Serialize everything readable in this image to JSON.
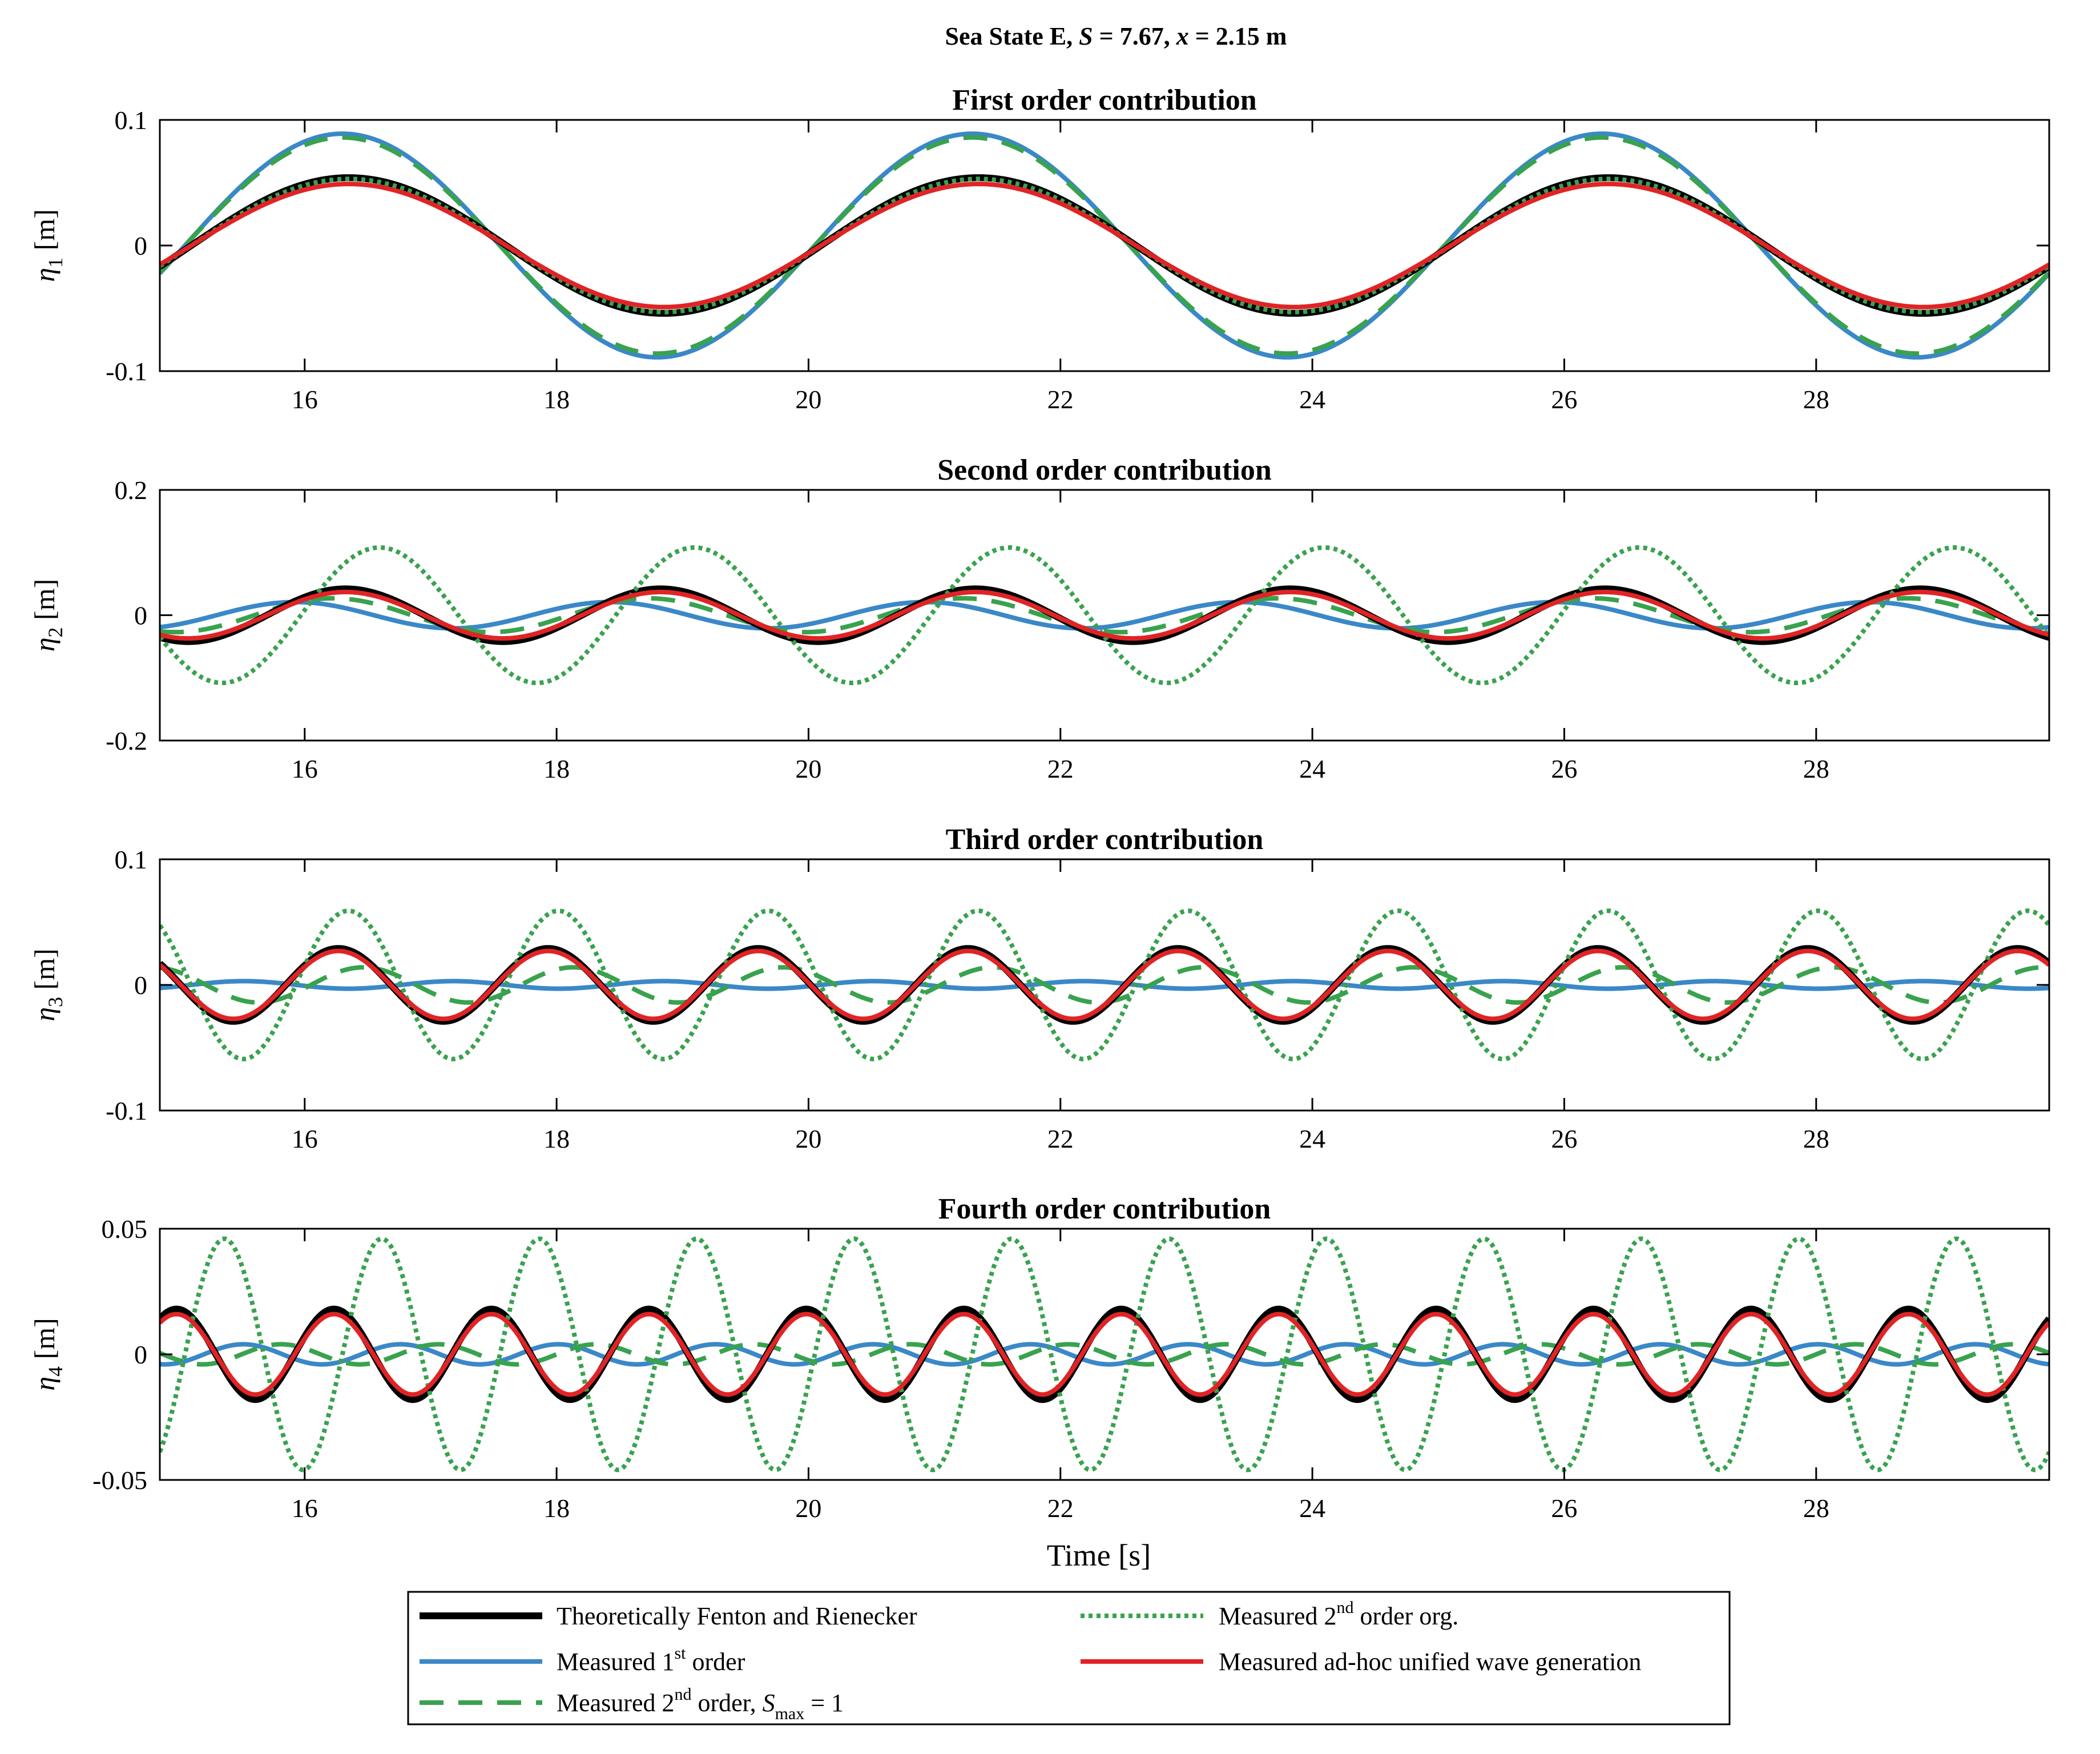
{
  "figure_title": {
    "prefix": "Sea State E, ",
    "S_symbol": "S",
    "S_text": " = 7.67, ",
    "x_symbol": "x",
    "x_text": " = 2.15 m"
  },
  "legend": {
    "entries": [
      {
        "key": "fenton",
        "pre": "Theoretically Fenton and Rienecker",
        "sup": "",
        "post": "",
        "sub_symbol": "",
        "sub": "",
        "tail": ""
      },
      {
        "key": "m1",
        "pre": "Measured 1",
        "sup": "st",
        "post": " order",
        "sub_symbol": "",
        "sub": "",
        "tail": ""
      },
      {
        "key": "m2",
        "pre": "Measured 2",
        "sup": "nd",
        "post": " order, ",
        "sub_symbol": "S",
        "sub": "max",
        "tail": " = 1"
      },
      {
        "key": "m2org",
        "pre": "Measured 2",
        "sup": "nd",
        "post": " order org.",
        "sub_symbol": "",
        "sub": "",
        "tail": ""
      },
      {
        "key": "adhoc",
        "pre": "Measured ad-hoc unified wave generation",
        "sup": "",
        "post": "",
        "sub_symbol": "",
        "sub": "",
        "tail": ""
      }
    ]
  },
  "chart_data": [
    {
      "type": "line",
      "title": "First order contribution",
      "ylabel_symbol": "η",
      "ylabel_sub": "1",
      "ylabel_unit": " [m]",
      "xlabel": "",
      "xlim": [
        14.85,
        29.85
      ],
      "ylim": [
        -0.1,
        0.1
      ],
      "yticks": [
        -0.1,
        0,
        0.1
      ],
      "ytick_labels": [
        "-0.1",
        "0",
        "0.1"
      ],
      "xticks": [
        16,
        18,
        20,
        22,
        24,
        26,
        28
      ],
      "xtick_labels": [
        "16",
        "18",
        "20",
        "22",
        "24",
        "26",
        "28"
      ],
      "period_s": 5.0,
      "series": [
        {
          "name": "Theoretically Fenton and Rienecker",
          "key": "fenton",
          "amplitude": 0.054,
          "zero_crossing_s": 15.1
        },
        {
          "name": "Measured 1st order",
          "key": "m1",
          "amplitude": 0.089,
          "zero_crossing_s": 15.05
        },
        {
          "name": "Measured 2nd order, S_max = 1",
          "key": "m2",
          "amplitude": 0.086,
          "zero_crossing_s": 15.05
        },
        {
          "name": "Measured 2nd order org.",
          "key": "m2org",
          "amplitude": 0.053,
          "zero_crossing_s": 15.1
        },
        {
          "name": "Measured ad-hoc unified wave generation",
          "key": "adhoc",
          "amplitude": 0.049,
          "zero_crossing_s": 15.1
        }
      ]
    },
    {
      "type": "line",
      "title": "Second order contribution",
      "ylabel_symbol": "η",
      "ylabel_sub": "2",
      "ylabel_unit": " [m]",
      "xlabel": "",
      "xlim": [
        14.85,
        29.85
      ],
      "ylim": [
        -0.2,
        0.2
      ],
      "yticks": [
        -0.2,
        0,
        0.2
      ],
      "ytick_labels": [
        "-0.2",
        "0",
        "0.2"
      ],
      "xticks": [
        16,
        18,
        20,
        22,
        24,
        26,
        28
      ],
      "xtick_labels": [
        "16",
        "18",
        "20",
        "22",
        "24",
        "26",
        "28"
      ],
      "period_s": 2.5,
      "series": [
        {
          "name": "Theoretically Fenton and Rienecker",
          "key": "fenton",
          "amplitude": 0.042,
          "zero_crossing_s": 15.7
        },
        {
          "name": "Measured 1st order",
          "key": "m1",
          "amplitude": 0.021,
          "zero_crossing_s": 15.3
        },
        {
          "name": "Measured 2nd order, S_max = 1",
          "key": "m2",
          "amplitude": 0.027,
          "zero_crossing_s": 15.6
        },
        {
          "name": "Measured 2nd order org.",
          "key": "m2org",
          "amplitude": 0.108,
          "zero_crossing_s": 15.97
        },
        {
          "name": "Measured ad-hoc unified wave generation",
          "key": "adhoc",
          "amplitude": 0.037,
          "zero_crossing_s": 15.7
        }
      ]
    },
    {
      "type": "line",
      "title": "Third order contribution",
      "ylabel_symbol": "η",
      "ylabel_sub": "3",
      "ylabel_unit": " [m]",
      "xlabel": "",
      "xlim": [
        14.85,
        29.85
      ],
      "ylim": [
        -0.1,
        0.1
      ],
      "yticks": [
        -0.1,
        0,
        0.1
      ],
      "ytick_labels": [
        "-0.1",
        "0",
        "0.1"
      ],
      "xticks": [
        16,
        18,
        20,
        22,
        24,
        26,
        28
      ],
      "xtick_labels": [
        "16",
        "18",
        "20",
        "22",
        "24",
        "26",
        "28"
      ],
      "period_s": 1.6667,
      "series": [
        {
          "name": "Theoretically Fenton and Rienecker",
          "key": "fenton",
          "amplitude": 0.029,
          "zero_crossing_s": 15.85
        },
        {
          "name": "Measured 1st order",
          "key": "m1",
          "amplitude": 0.003,
          "zero_crossing_s": 15.1
        },
        {
          "name": "Measured 2nd order, S_max = 1",
          "key": "m2",
          "amplitude": 0.014,
          "zero_crossing_s": 16.05
        },
        {
          "name": "Measured 2nd order org.",
          "key": "m2org",
          "amplitude": 0.059,
          "zero_crossing_s": 15.93
        },
        {
          "name": "Measured ad-hoc unified wave generation",
          "key": "adhoc",
          "amplitude": 0.027,
          "zero_crossing_s": 15.85
        }
      ]
    },
    {
      "type": "line",
      "title": "Fourth order contribution",
      "ylabel_symbol": "η",
      "ylabel_sub": "4",
      "ylabel_unit": " [m]",
      "xlabel": "Time [s]",
      "xlim": [
        14.85,
        29.85
      ],
      "ylim": [
        -0.05,
        0.05
      ],
      "yticks": [
        -0.05,
        0,
        0.05
      ],
      "ytick_labels": [
        "-0.05",
        "0",
        "0.05"
      ],
      "xticks": [
        16,
        18,
        20,
        22,
        24,
        26,
        28
      ],
      "xtick_labels": [
        "16",
        "18",
        "20",
        "22",
        "24",
        "26",
        "28"
      ],
      "period_s": 1.25,
      "series": [
        {
          "name": "Theoretically Fenton and Rienecker",
          "key": "fenton",
          "amplitude": 0.018,
          "zero_crossing_s": 15.92
        },
        {
          "name": "Measured 1st order",
          "key": "m1",
          "amplitude": 0.004,
          "zero_crossing_s": 15.2
        },
        {
          "name": "Measured 2nd order, S_max = 1",
          "key": "m2",
          "amplitude": 0.004,
          "zero_crossing_s": 15.5
        },
        {
          "name": "Measured 2nd order org.",
          "key": "m2org",
          "amplitude": 0.046,
          "zero_crossing_s": 16.3
        },
        {
          "name": "Measured ad-hoc unified wave generation",
          "key": "adhoc",
          "amplitude": 0.016,
          "zero_crossing_s": 15.92
        }
      ]
    }
  ],
  "series_styles": {
    "fenton": {
      "color": "#000000",
      "dash": "solid"
    },
    "m1": {
      "color": "#3a88c8",
      "dash": "solid"
    },
    "m2": {
      "color": "#39a24e",
      "dash": "dashed"
    },
    "m2org": {
      "color": "#39a24e",
      "dash": "dotted"
    },
    "adhoc": {
      "color": "#e02426",
      "dash": "solid"
    }
  }
}
